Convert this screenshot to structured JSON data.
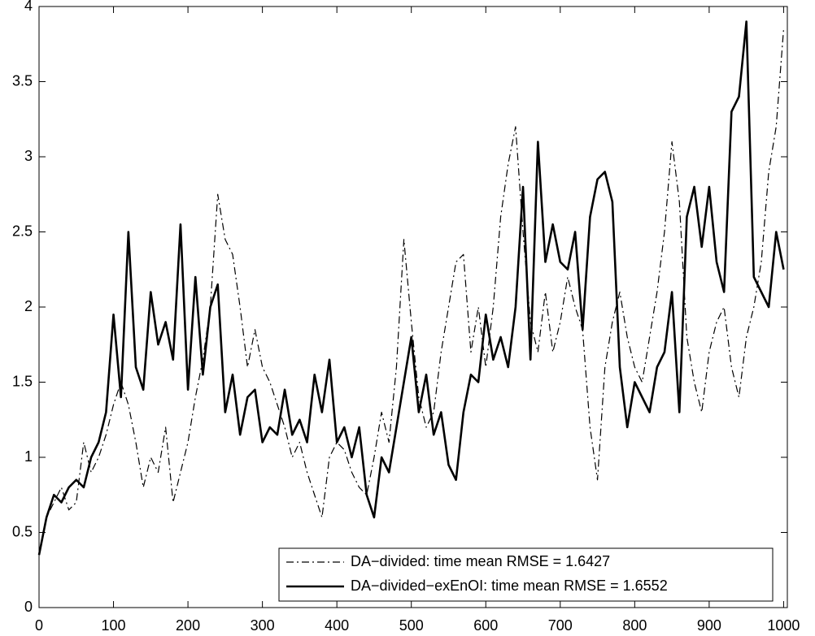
{
  "chart_data": {
    "type": "line",
    "x": [
      0,
      10,
      20,
      30,
      40,
      50,
      60,
      70,
      80,
      90,
      100,
      110,
      120,
      130,
      140,
      150,
      160,
      170,
      180,
      190,
      200,
      210,
      220,
      230,
      240,
      250,
      260,
      270,
      280,
      290,
      300,
      310,
      320,
      330,
      340,
      350,
      360,
      370,
      380,
      390,
      400,
      410,
      420,
      430,
      440,
      450,
      460,
      470,
      480,
      490,
      500,
      510,
      520,
      530,
      540,
      550,
      560,
      570,
      580,
      590,
      600,
      610,
      620,
      630,
      640,
      650,
      660,
      670,
      680,
      690,
      700,
      710,
      720,
      730,
      740,
      750,
      760,
      770,
      780,
      790,
      800,
      810,
      820,
      830,
      840,
      850,
      860,
      870,
      880,
      890,
      900,
      910,
      920,
      930,
      940,
      950,
      960,
      970,
      980,
      990,
      1000
    ],
    "series": [
      {
        "name": "DA−divided: time mean RMSE = 1.6427",
        "color": "#000000",
        "style": "dashdot",
        "values": [
          0.35,
          0.6,
          0.7,
          0.8,
          0.65,
          0.7,
          1.1,
          0.9,
          1.0,
          1.15,
          1.35,
          1.5,
          1.35,
          1.1,
          0.8,
          1.0,
          0.9,
          1.2,
          0.7,
          0.9,
          1.1,
          1.4,
          1.65,
          2.0,
          2.75,
          2.45,
          2.35,
          2.0,
          1.6,
          1.85,
          1.6,
          1.5,
          1.35,
          1.2,
          1.0,
          1.1,
          0.9,
          0.75,
          0.6,
          1.0,
          1.1,
          1.05,
          0.9,
          0.8,
          0.75,
          1.0,
          1.3,
          1.1,
          1.6,
          2.45,
          1.9,
          1.4,
          1.2,
          1.3,
          1.7,
          2.0,
          2.3,
          2.35,
          1.7,
          2.0,
          1.6,
          2.0,
          2.6,
          2.95,
          3.2,
          2.5,
          1.9,
          1.7,
          2.1,
          1.7,
          1.9,
          2.2,
          2.0,
          1.85,
          1.2,
          0.85,
          1.6,
          1.9,
          2.1,
          1.8,
          1.6,
          1.5,
          1.8,
          2.1,
          2.5,
          3.1,
          2.7,
          1.8,
          1.5,
          1.3,
          1.7,
          1.9,
          2.0,
          1.6,
          1.4,
          1.8,
          2.0,
          2.3,
          2.9,
          3.2,
          3.85
        ]
      },
      {
        "name": "DA−divided−exEnOI: time mean RMSE = 1.6552",
        "color": "#000000",
        "style": "solid",
        "values": [
          0.35,
          0.6,
          0.75,
          0.7,
          0.8,
          0.85,
          0.8,
          1.0,
          1.1,
          1.3,
          1.95,
          1.4,
          2.5,
          1.6,
          1.45,
          2.1,
          1.75,
          1.9,
          1.65,
          2.55,
          1.45,
          2.2,
          1.55,
          2.0,
          2.15,
          1.3,
          1.55,
          1.15,
          1.4,
          1.45,
          1.1,
          1.2,
          1.15,
          1.45,
          1.15,
          1.25,
          1.1,
          1.55,
          1.3,
          1.65,
          1.1,
          1.2,
          1.0,
          1.2,
          0.75,
          0.6,
          1.0,
          0.9,
          1.2,
          1.5,
          1.8,
          1.3,
          1.55,
          1.15,
          1.3,
          0.95,
          0.85,
          1.3,
          1.55,
          1.5,
          1.95,
          1.65,
          1.8,
          1.6,
          2.0,
          2.8,
          1.65,
          3.1,
          2.3,
          2.55,
          2.3,
          2.25,
          2.5,
          1.85,
          2.6,
          2.85,
          2.9,
          2.7,
          1.6,
          1.2,
          1.5,
          1.4,
          1.3,
          1.6,
          1.7,
          2.1,
          1.3,
          2.6,
          2.8,
          2.4,
          2.8,
          2.3,
          2.1,
          3.3,
          3.4,
          3.9,
          2.2,
          2.1,
          2.0,
          2.5,
          2.25
        ]
      }
    ],
    "xlim": [
      0,
      1005
    ],
    "ylim": [
      0,
      4
    ],
    "xticks": [
      0,
      100,
      200,
      300,
      400,
      500,
      600,
      700,
      800,
      900,
      1000
    ],
    "yticks": [
      0,
      0.5,
      1,
      1.5,
      2,
      2.5,
      3,
      3.5,
      4
    ],
    "legend": "lower right"
  }
}
